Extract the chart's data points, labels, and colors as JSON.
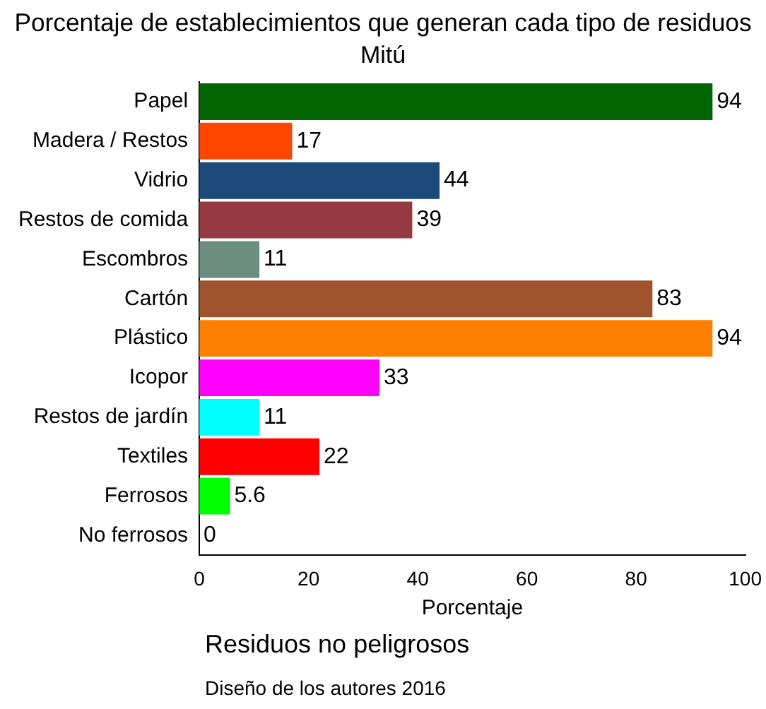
{
  "chart_data": {
    "type": "bar",
    "orientation": "horizontal",
    "title": "Porcentaje de establecimientos que generan cada tipo de residuos",
    "subtitle": "Mitú",
    "xlabel": "Porcentaje",
    "categories": [
      "Papel",
      "Madera / Restos",
      "Vidrio",
      "Restos de comida",
      "Escombros",
      "Cartón",
      "Plástico",
      "Icopor",
      "Restos de jardín",
      "Textiles",
      "Ferrosos",
      "No ferrosos"
    ],
    "values": [
      94,
      17,
      44,
      39,
      11,
      83,
      94,
      33,
      11,
      22,
      5.6,
      0
    ],
    "colors": [
      "#006400",
      "#ff4500",
      "#1c4a7a",
      "#943a40",
      "#6b8e80",
      "#a0522d",
      "#ff8000",
      "#ff00ff",
      "#00ffff",
      "#ff0000",
      "#00ff00",
      "#0000ff"
    ],
    "xlim": [
      0,
      100
    ],
    "xticks": [
      0,
      20,
      40,
      60,
      80,
      100
    ],
    "grid": false,
    "legend": false,
    "data_labels": true,
    "annotations": [
      "Residuos no peligrosos",
      "Diseño de los autores 2016"
    ]
  }
}
